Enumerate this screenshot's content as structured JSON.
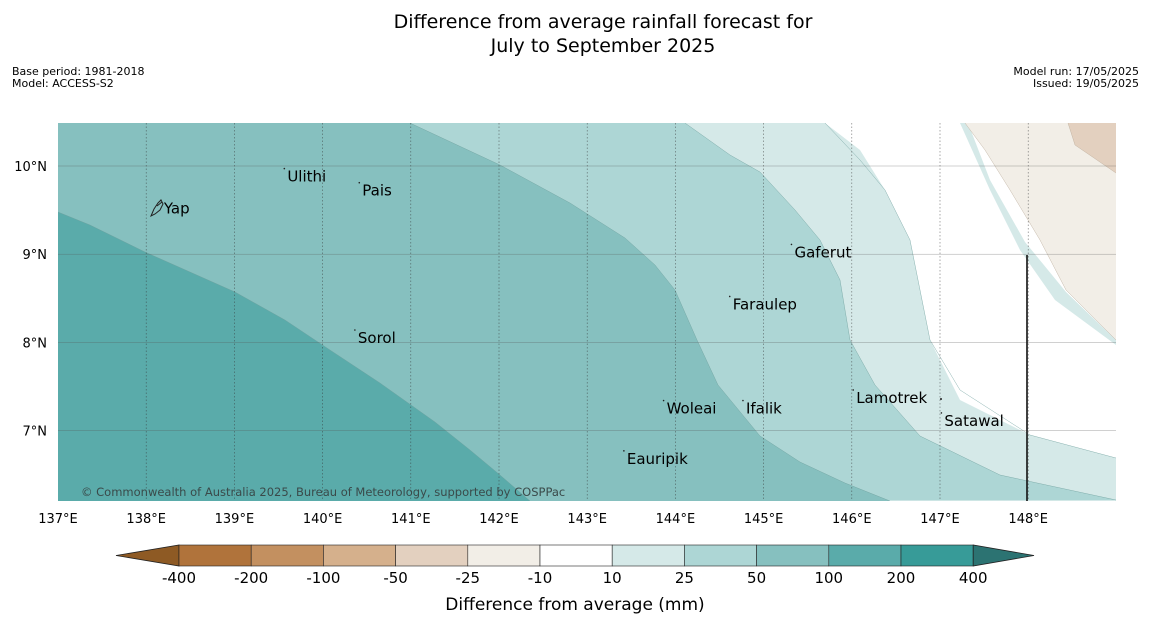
{
  "header": {
    "title_line1": "Difference from average rainfall forecast for",
    "title_line2": "July to September 2025",
    "base_period": "Base period: 1981-2018",
    "model": "Model: ACCESS-S2",
    "model_run": "Model run: 17/05/2025",
    "issued": "Issued: 19/05/2025"
  },
  "map": {
    "lon_range": [
      137,
      149
    ],
    "lat_range": [
      6.2,
      10.5
    ],
    "lon_ticks": [
      {
        "value": 137,
        "label": "137°E"
      },
      {
        "value": 138,
        "label": "138°E"
      },
      {
        "value": 139,
        "label": "139°E"
      },
      {
        "value": 140,
        "label": "140°E"
      },
      {
        "value": 141,
        "label": "141°E"
      },
      {
        "value": 142,
        "label": "142°E"
      },
      {
        "value": 143,
        "label": "143°E"
      },
      {
        "value": 144,
        "label": "144°E"
      },
      {
        "value": 145,
        "label": "145°E"
      },
      {
        "value": 146,
        "label": "146°E"
      },
      {
        "value": 147,
        "label": "147°E"
      },
      {
        "value": 148,
        "label": "148°E"
      }
    ],
    "lat_ticks": [
      {
        "value": 10,
        "label": "10°N"
      },
      {
        "value": 9,
        "label": "9°N"
      },
      {
        "value": 8,
        "label": "8°N"
      },
      {
        "value": 7,
        "label": "7°N"
      }
    ],
    "places": [
      {
        "name": "Yap",
        "lon": 138.2,
        "lat": 9.52
      },
      {
        "name": "Ulithi",
        "lon": 139.6,
        "lat": 9.88
      },
      {
        "name": "Pais",
        "lon": 140.45,
        "lat": 9.72
      },
      {
        "name": "Gaferut",
        "lon": 145.35,
        "lat": 9.02
      },
      {
        "name": "Faraulep",
        "lon": 144.65,
        "lat": 8.43
      },
      {
        "name": "Sorol",
        "lon": 140.4,
        "lat": 8.05
      },
      {
        "name": "Woleai",
        "lon": 143.9,
        "lat": 7.25
      },
      {
        "name": "Ifalik",
        "lon": 144.8,
        "lat": 7.25
      },
      {
        "name": "Lamotrek",
        "lon": 146.05,
        "lat": 7.37
      },
      {
        "name": "Satawal",
        "lon": 147.05,
        "lat": 7.11
      },
      {
        "name": "Eauripik",
        "lon": 143.45,
        "lat": 6.68
      }
    ],
    "copyright": "© Commonwealth of Australia 2025, Bureau of Meteorology, supported by COSPPac"
  },
  "legend": {
    "title": "Difference from average (mm)",
    "bins": [
      {
        "range": "< -400",
        "color": "#8e5a24"
      },
      {
        "range": "-400 to -200",
        "color": "#b0733b"
      },
      {
        "range": "-200 to -100",
        "color": "#c39060"
      },
      {
        "range": "-100 to -50",
        "color": "#d5b08c"
      },
      {
        "range": "-50 to -25",
        "color": "#e3d0bf"
      },
      {
        "range": "-25 to -10",
        "color": "#f2eee7"
      },
      {
        "range": "-10 to 10",
        "color": "#ffffff"
      },
      {
        "range": "10 to 25",
        "color": "#d5e9e8"
      },
      {
        "range": "25 to 50",
        "color": "#add6d5"
      },
      {
        "range": "50 to 100",
        "color": "#86c0bf"
      },
      {
        "range": "100 to 200",
        "color": "#5aabaa"
      },
      {
        "range": "200 to 400",
        "color": "#379b98"
      },
      {
        "range": "> 400",
        "color": "#2c7372"
      }
    ],
    "tick_labels": [
      "-400",
      "-200",
      "-100",
      "-50",
      "-25",
      "-10",
      "10",
      "25",
      "50",
      "100",
      "200",
      "400"
    ]
  }
}
